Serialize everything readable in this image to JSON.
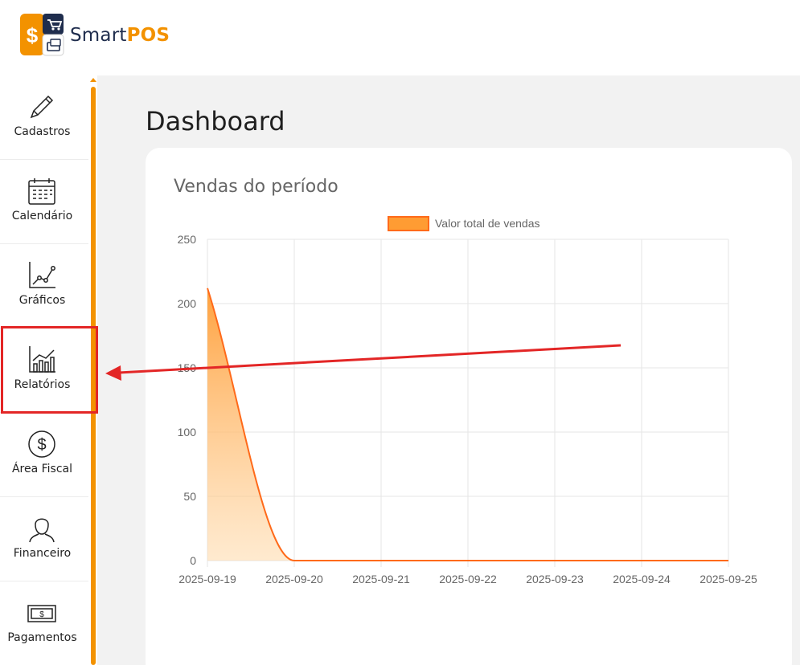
{
  "brand": {
    "name_part1": "Smart",
    "name_part2": "POS"
  },
  "sidebar": {
    "items": [
      {
        "label": "Cadastros",
        "icon": "pencil-icon"
      },
      {
        "label": "Calendário",
        "icon": "calendar-icon"
      },
      {
        "label": "Gráficos",
        "icon": "line-chart-icon"
      },
      {
        "label": "Relatórios",
        "icon": "bar-chart-icon"
      },
      {
        "label": "Área Fiscal",
        "icon": "dollar-circle-icon"
      },
      {
        "label": "Financeiro",
        "icon": "person-icon"
      },
      {
        "label": "Pagamentos",
        "icon": "banknote-icon"
      }
    ]
  },
  "page": {
    "title": "Dashboard"
  },
  "card": {
    "title": "Vendas do período"
  },
  "colors": {
    "accent": "#f39200",
    "annotation": "#e32626",
    "series": "#ff6a1a"
  },
  "chart_data": {
    "type": "area",
    "title": "",
    "x": [
      "2025-09-19",
      "2025-09-20",
      "2025-09-21",
      "2025-09-22",
      "2025-09-23",
      "2025-09-24",
      "2025-09-25"
    ],
    "series": [
      {
        "name": "Valor total de vendas",
        "values": [
          212,
          0,
          0,
          0,
          0,
          0,
          0
        ]
      }
    ],
    "ylim": [
      0,
      250
    ],
    "yticks": [
      0,
      50,
      100,
      150,
      200,
      250
    ],
    "grid": true,
    "legend": "top-center"
  }
}
